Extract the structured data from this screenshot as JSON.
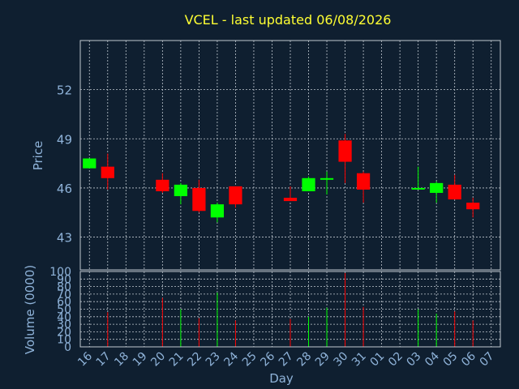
{
  "chart_data": {
    "type": "candlestick",
    "title": "VCEL - last updated 06/08/2026",
    "xlabel": "Day",
    "ylabel_price": "Price",
    "ylabel_volume": "Volume (0000)",
    "price_ticks": [
      43,
      46,
      49,
      52
    ],
    "price_ylim": [
      41.0,
      55.0
    ],
    "volume_ticks": [
      0,
      10,
      20,
      30,
      40,
      50,
      60,
      70,
      80,
      90,
      100
    ],
    "volume_ylim": [
      0,
      100
    ],
    "x_ticks": [
      "16",
      "17",
      "18",
      "19",
      "20",
      "21",
      "22",
      "23",
      "24",
      "25",
      "26",
      "27",
      "28",
      "29",
      "30",
      "31",
      "01",
      "02",
      "03",
      "04",
      "05",
      "06",
      "07"
    ],
    "grid": true,
    "colors": {
      "up": "#00ff00",
      "down": "#ff0000",
      "grid": "#c0c8d0",
      "background": "#0f1f30",
      "title": "#ffff33",
      "axis_text": "#8fb3d9"
    },
    "candles": [
      {
        "day": "16",
        "open": 47.2,
        "close": 47.8,
        "high": 47.8,
        "low": 47.2,
        "volume": 0
      },
      {
        "day": "17",
        "open": 47.3,
        "close": 46.6,
        "high": 48.1,
        "low": 45.9,
        "volume": 46
      },
      {
        "day": "20",
        "open": 46.5,
        "close": 45.8,
        "high": 46.9,
        "low": 45.7,
        "volume": 65
      },
      {
        "day": "21",
        "open": 45.5,
        "close": 46.2,
        "high": 46.3,
        "low": 45.0,
        "volume": 50
      },
      {
        "day": "22",
        "open": 46.0,
        "close": 44.6,
        "high": 46.5,
        "low": 44.5,
        "volume": 38
      },
      {
        "day": "23",
        "open": 44.2,
        "close": 45.0,
        "high": 45.1,
        "low": 43.9,
        "volume": 72
      },
      {
        "day": "24",
        "open": 46.1,
        "close": 45.0,
        "high": 46.1,
        "low": 44.8,
        "volume": 35
      },
      {
        "day": "27",
        "open": 45.4,
        "close": 45.2,
        "high": 46.1,
        "low": 45.2,
        "volume": 37
      },
      {
        "day": "28",
        "open": 45.8,
        "close": 46.6,
        "high": 46.7,
        "low": 45.8,
        "volume": 40
      },
      {
        "day": "29",
        "open": 46.5,
        "close": 46.6,
        "high": 47.0,
        "low": 45.6,
        "volume": 52
      },
      {
        "day": "30",
        "open": 48.9,
        "close": 47.6,
        "high": 49.3,
        "low": 46.3,
        "volume": 98
      },
      {
        "day": "31",
        "open": 46.9,
        "close": 45.9,
        "high": 47.0,
        "low": 45.1,
        "volume": 53
      },
      {
        "day": "03",
        "open": 46.0,
        "close": 46.0,
        "high": 47.3,
        "low": 45.9,
        "volume": 50
      },
      {
        "day": "04",
        "open": 45.7,
        "close": 46.3,
        "high": 46.4,
        "low": 45.1,
        "volume": 44
      },
      {
        "day": "05",
        "open": 46.2,
        "close": 45.3,
        "high": 46.8,
        "low": 45.3,
        "volume": 47
      },
      {
        "day": "06",
        "open": 45.1,
        "close": 44.7,
        "high": 45.4,
        "low": 44.2,
        "volume": 35
      }
    ]
  }
}
